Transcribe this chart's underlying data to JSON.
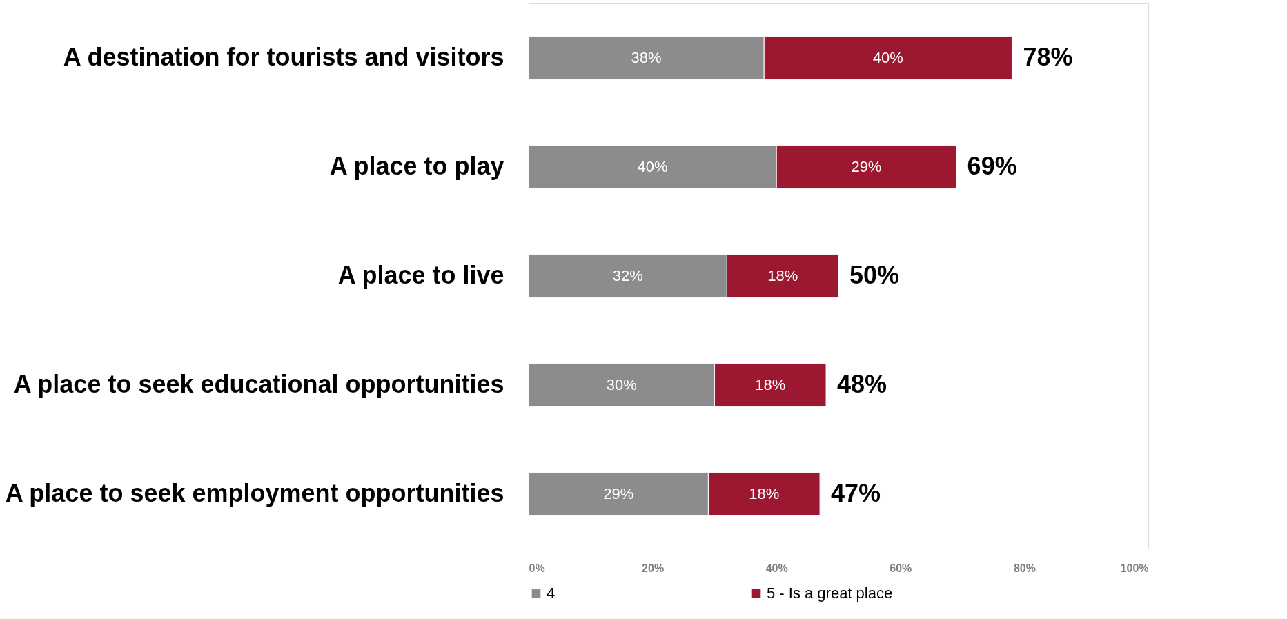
{
  "chart_data": {
    "type": "bar",
    "orientation": "horizontal",
    "stacked": true,
    "categories": [
      "A destination for tourists and visitors",
      "A place to play",
      "A place to live",
      "A place to seek educational opportunities",
      "A place to seek employment opportunities"
    ],
    "series": [
      {
        "name": "4",
        "color": "#8c8c8c",
        "values": [
          38,
          40,
          32,
          30,
          29
        ],
        "value_labels": [
          "38%",
          "40%",
          "32%",
          "30%",
          "29%"
        ]
      },
      {
        "name": "5 - Is a great place",
        "color": "#9b1830",
        "values": [
          40,
          29,
          18,
          18,
          18
        ],
        "value_labels": [
          "40%",
          "29%",
          "18%",
          "18%",
          "18%"
        ]
      }
    ],
    "totals": [
      "78%",
      "69%",
      "50%",
      "48%",
      "47%"
    ],
    "xlim": [
      0,
      100
    ],
    "xticks": [
      {
        "value": 0,
        "label": "0%"
      },
      {
        "value": 20,
        "label": "20%"
      },
      {
        "value": 40,
        "label": "40%"
      },
      {
        "value": 60,
        "label": "60%"
      },
      {
        "value": 80,
        "label": "80%"
      },
      {
        "value": 100,
        "label": "100%"
      }
    ],
    "grid": false,
    "legend": "bottom"
  }
}
